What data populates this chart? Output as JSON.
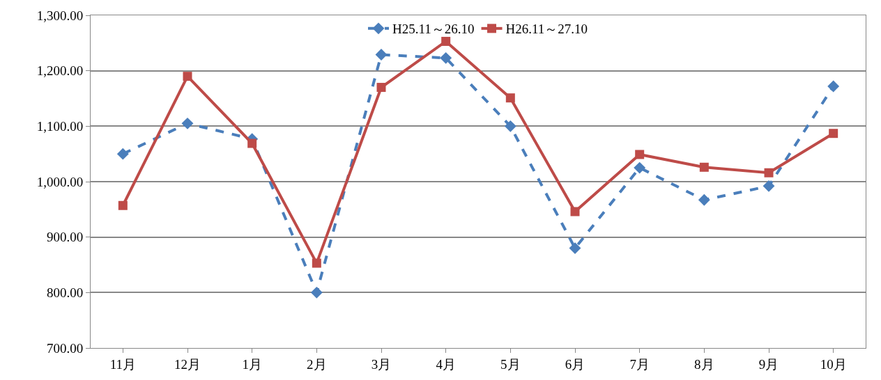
{
  "chart_data": {
    "type": "line",
    "categories": [
      "11月",
      "12月",
      "1月",
      "2月",
      "3月",
      "4月",
      "5月",
      "6月",
      "7月",
      "8月",
      "9月",
      "10月"
    ],
    "series": [
      {
        "name": "H25.11～26.10",
        "color": "#4a7ebb",
        "marker": "diamond",
        "line_style": "dashed",
        "values": [
          1050,
          1105,
          1077,
          800,
          1229,
          1223,
          1100,
          880,
          1025,
          967,
          992,
          1172
        ]
      },
      {
        "name": "H26.11～27.10",
        "color": "#be4b48",
        "marker": "square",
        "line_style": "solid",
        "values": [
          957,
          1190,
          1069,
          853,
          1170,
          1253,
          1151,
          946,
          1049,
          1026,
          1016,
          1087
        ]
      }
    ],
    "ylim": [
      700,
      1300
    ],
    "yticks": [
      {
        "value": 700,
        "label": "700.00"
      },
      {
        "value": 800,
        "label": "800.00"
      },
      {
        "value": 900,
        "label": "900.00"
      },
      {
        "value": 1000,
        "label": "1,000.00"
      },
      {
        "value": 1100,
        "label": "1,100.00"
      },
      {
        "value": 1200,
        "label": "1,200.00"
      },
      {
        "value": 1300,
        "label": "1,300.00"
      }
    ],
    "grid": "y",
    "legend": "top"
  }
}
